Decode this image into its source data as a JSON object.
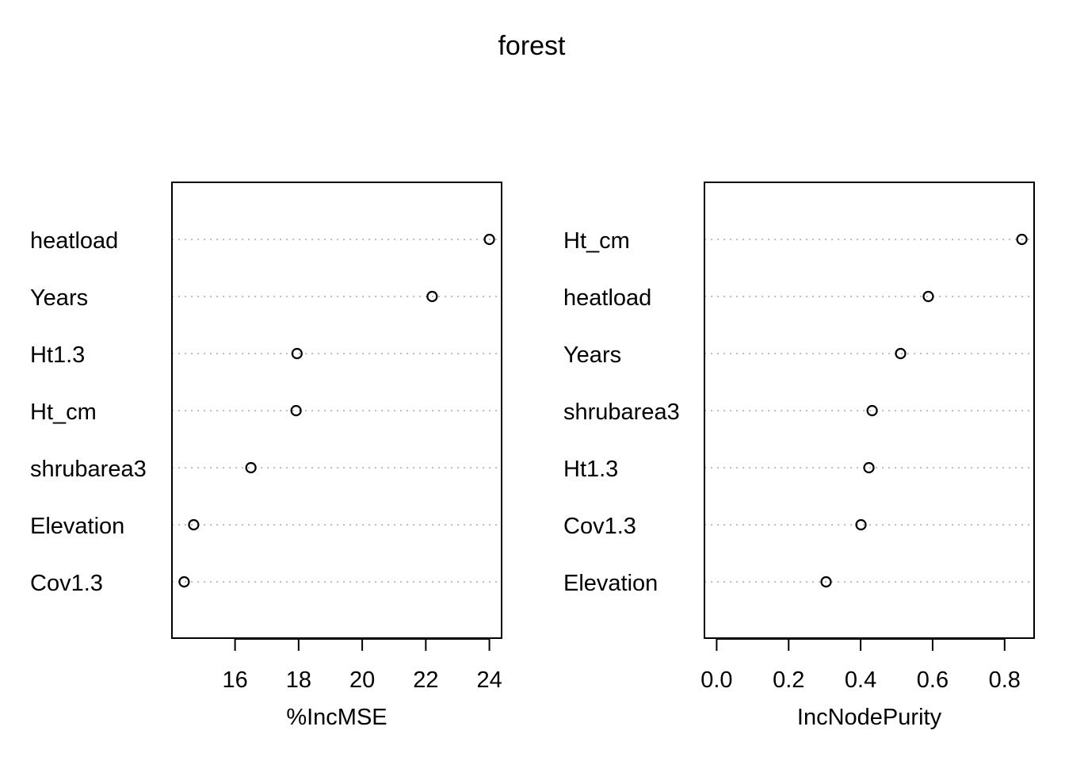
{
  "title": "forest",
  "chart_data": [
    {
      "type": "scatter",
      "variables": [
        "heatload",
        "Years",
        "Ht1.3",
        "Ht_cm",
        "shrubarea3",
        "Elevation",
        "Cov1.3"
      ],
      "values": [
        24.0,
        22.2,
        17.95,
        17.92,
        16.5,
        14.7,
        14.4
      ],
      "xlabel": "%IncMSE",
      "xlim": [
        14.4,
        24.0
      ],
      "ticks": [
        "16",
        "18",
        "20",
        "22",
        "24"
      ]
    },
    {
      "type": "scatter",
      "variables": [
        "Ht_cm",
        "heatload",
        "Years",
        "shrubarea3",
        "Ht1.3",
        "Cov1.3",
        "Elevation"
      ],
      "values": [
        0.848,
        0.588,
        0.511,
        0.432,
        0.423,
        0.401,
        0.304
      ],
      "xlabel": "IncNodePurity",
      "xlim": [
        0.0,
        0.848
      ],
      "ticks": [
        "0.0",
        "0.2",
        "0.4",
        "0.6",
        "0.8"
      ]
    }
  ]
}
